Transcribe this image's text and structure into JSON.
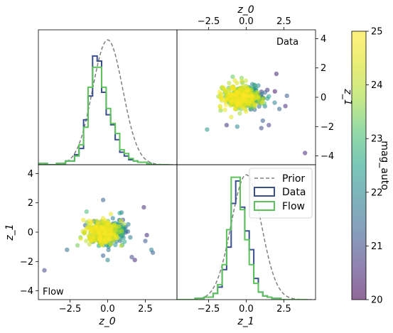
{
  "chart_data": {
    "type": "scatter",
    "x_axis_label": "z_0",
    "y_axis_label": "z_1",
    "xlim": [
      -4.6,
      4.6
    ],
    "ylim": [
      -4.6,
      4.6
    ],
    "ticks": [
      -2.5,
      0.0,
      2.5
    ],
    "ticks_y": [
      -4,
      -2,
      0,
      2,
      4
    ],
    "tick_labels_x": [
      "−2.5",
      "0.0",
      "2.5"
    ],
    "tick_labels_y": [
      "−4",
      "−2",
      "0",
      "2",
      "4"
    ],
    "panels": [
      {
        "position": "top-left",
        "type": "histogram",
        "variable": "z_0"
      },
      {
        "position": "top-right",
        "type": "scatter",
        "label": "Data",
        "source": "data"
      },
      {
        "position": "bottom-left",
        "type": "scatter",
        "label": "Flow",
        "source": "flow"
      },
      {
        "position": "bottom-right",
        "type": "histogram",
        "variable": "z_1"
      }
    ],
    "colorbar": {
      "label": "mag_auto",
      "range": [
        20,
        25
      ],
      "ticks": [
        "20",
        "21",
        "22",
        "23",
        "24",
        "25"
      ],
      "colormap": "viridis"
    },
    "legend": {
      "position": "upper-right",
      "entries": [
        {
          "label": "Prior",
          "color": "#808080",
          "style": "dashed"
        },
        {
          "label": "Data",
          "color": "#3a4f8c",
          "style": "step"
        },
        {
          "label": "Flow",
          "color": "#5cc25c",
          "style": "step"
        }
      ]
    },
    "prior": {
      "mean": 0,
      "std": 1
    },
    "hist_bins": [
      -4.6,
      -4.0,
      -3.4,
      -2.8,
      -2.2,
      -1.9,
      -1.6,
      -1.3,
      -1.0,
      -0.7,
      -0.4,
      -0.1,
      0.2,
      0.5,
      0.8,
      1.1,
      1.4,
      1.7,
      2.0,
      2.3,
      2.6,
      2.9,
      3.5,
      4.1
    ],
    "hist_z0_data": [
      0.01,
      0.0,
      0.01,
      0.03,
      0.08,
      0.13,
      0.36,
      0.55,
      0.87,
      0.83,
      0.58,
      0.4,
      0.32,
      0.2,
      0.1,
      0.07,
      0.04,
      0.03,
      0.02,
      0.02,
      0.01,
      0.0,
      0.0
    ],
    "hist_z0_flow": [
      0.01,
      0.0,
      0.01,
      0.03,
      0.07,
      0.16,
      0.3,
      0.62,
      0.78,
      0.78,
      0.62,
      0.45,
      0.33,
      0.25,
      0.12,
      0.09,
      0.05,
      0.03,
      0.02,
      0.02,
      0.01,
      0.0,
      0.0
    ],
    "hist_z1_data": [
      0.0,
      0.0,
      0.01,
      0.02,
      0.05,
      0.1,
      0.24,
      0.42,
      0.77,
      0.95,
      0.74,
      0.55,
      0.4,
      0.17,
      0.06,
      0.03,
      0.02,
      0.01,
      0.01,
      0.0,
      0.0,
      0.0,
      0.0
    ],
    "hist_z1_flow": [
      0.0,
      0.0,
      0.01,
      0.02,
      0.05,
      0.12,
      0.28,
      0.56,
      0.98,
      0.98,
      0.72,
      0.48,
      0.28,
      0.13,
      0.06,
      0.03,
      0.02,
      0.01,
      0.01,
      0.0,
      0.0,
      0.0,
      0.0
    ],
    "prior_peak": 0.4,
    "hist_ymax": 1.0,
    "scatter_data_points": [
      [
        -2.6,
        -2.2,
        22.3
      ],
      [
        -1.7,
        -0.9,
        23.6
      ],
      [
        3.9,
        -3.8,
        20.5
      ],
      [
        1.9,
        0.4,
        20.3
      ],
      [
        2.0,
        1.6,
        20.4
      ],
      [
        2.6,
        -0.6,
        20.5
      ],
      [
        1.5,
        -1.9,
        20.8
      ],
      [
        -1.3,
        -1.9,
        20.6
      ],
      [
        2.2,
        -0.8,
        21.4
      ],
      [
        1.4,
        0.5,
        20.6
      ],
      [
        -0.6,
        -2.0,
        22.0
      ],
      [
        1.1,
        -1.6,
        21.2
      ],
      [
        0.8,
        0.8,
        22.0
      ],
      [
        -0.9,
        1.4,
        23.3
      ],
      [
        2.7,
        0.1,
        21.2
      ],
      [
        1.0,
        -2.1,
        21.0
      ]
    ],
    "scatter_flow_points": [
      [
        -4.2,
        -2.6,
        20.9
      ],
      [
        -2.7,
        -1.2,
        21.5
      ],
      [
        -0.3,
        2.2,
        21.3
      ],
      [
        2.4,
        1.7,
        20.6
      ],
      [
        2.9,
        -1.2,
        21.8
      ],
      [
        -0.3,
        -1.6,
        21.3
      ],
      [
        2.6,
        -0.2,
        20.5
      ],
      [
        2.5,
        -0.6,
        21.2
      ],
      [
        1.6,
        -1.7,
        21.0
      ],
      [
        -1.4,
        1.4,
        23.0
      ],
      [
        0.8,
        1.3,
        22.5
      ],
      [
        -2.0,
        -0.9,
        23.4
      ],
      [
        1.8,
        -1.9,
        20.5
      ],
      [
        3.0,
        -1.4,
        21.2
      ],
      [
        0.0,
        -1.9,
        22.0
      ]
    ]
  }
}
